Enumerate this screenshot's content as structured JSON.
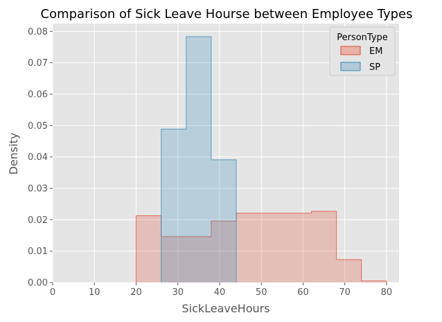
{
  "chart_data": {
    "type": "histogram",
    "title": "Comparison of Sick Leave Hourse between Employee Types",
    "xlabel": "SickLeaveHours",
    "ylabel": "Density",
    "xlim": [
      0,
      83
    ],
    "ylim": [
      0,
      0.0825
    ],
    "x_ticks": [
      0,
      10,
      20,
      30,
      40,
      50,
      60,
      70,
      80
    ],
    "y_ticks": [
      0.0,
      0.01,
      0.02,
      0.03,
      0.04,
      0.05,
      0.06,
      0.07,
      0.08
    ],
    "x_tick_labels": [
      "0",
      "10",
      "20",
      "30",
      "40",
      "50",
      "60",
      "70",
      "80"
    ],
    "y_tick_labels": [
      "0.00",
      "0.01",
      "0.02",
      "0.03",
      "0.04",
      "0.05",
      "0.06",
      "0.07",
      "0.08"
    ],
    "grid": true,
    "background": "#e5e5e5",
    "legend": {
      "title": "PersonType",
      "placement": "top-right"
    },
    "series": [
      {
        "name": "EM",
        "color": "#e24a33",
        "fill": "#e8b2a8",
        "bins": [
          {
            "x0": 20,
            "x1": 26,
            "density": 0.0213
          },
          {
            "x0": 26,
            "x1": 32,
            "density": 0.0146
          },
          {
            "x0": 32,
            "x1": 38,
            "density": 0.0146
          },
          {
            "x0": 38,
            "x1": 44,
            "density": 0.0196
          },
          {
            "x0": 44,
            "x1": 50,
            "density": 0.0221
          },
          {
            "x0": 50,
            "x1": 56,
            "density": 0.0221
          },
          {
            "x0": 56,
            "x1": 62,
            "density": 0.0221
          },
          {
            "x0": 62,
            "x1": 68,
            "density": 0.0227
          },
          {
            "x0": 68,
            "x1": 74,
            "density": 0.0073
          },
          {
            "x0": 74,
            "x1": 80,
            "density": 0.0005
          }
        ]
      },
      {
        "name": "SP",
        "color": "#348abd",
        "fill": "#b2c9d8",
        "bins": [
          {
            "x0": 26,
            "x1": 32,
            "density": 0.0489
          },
          {
            "x0": 32,
            "x1": 38,
            "density": 0.0783
          },
          {
            "x0": 38,
            "x1": 44,
            "density": 0.0391
          }
        ]
      }
    ]
  }
}
